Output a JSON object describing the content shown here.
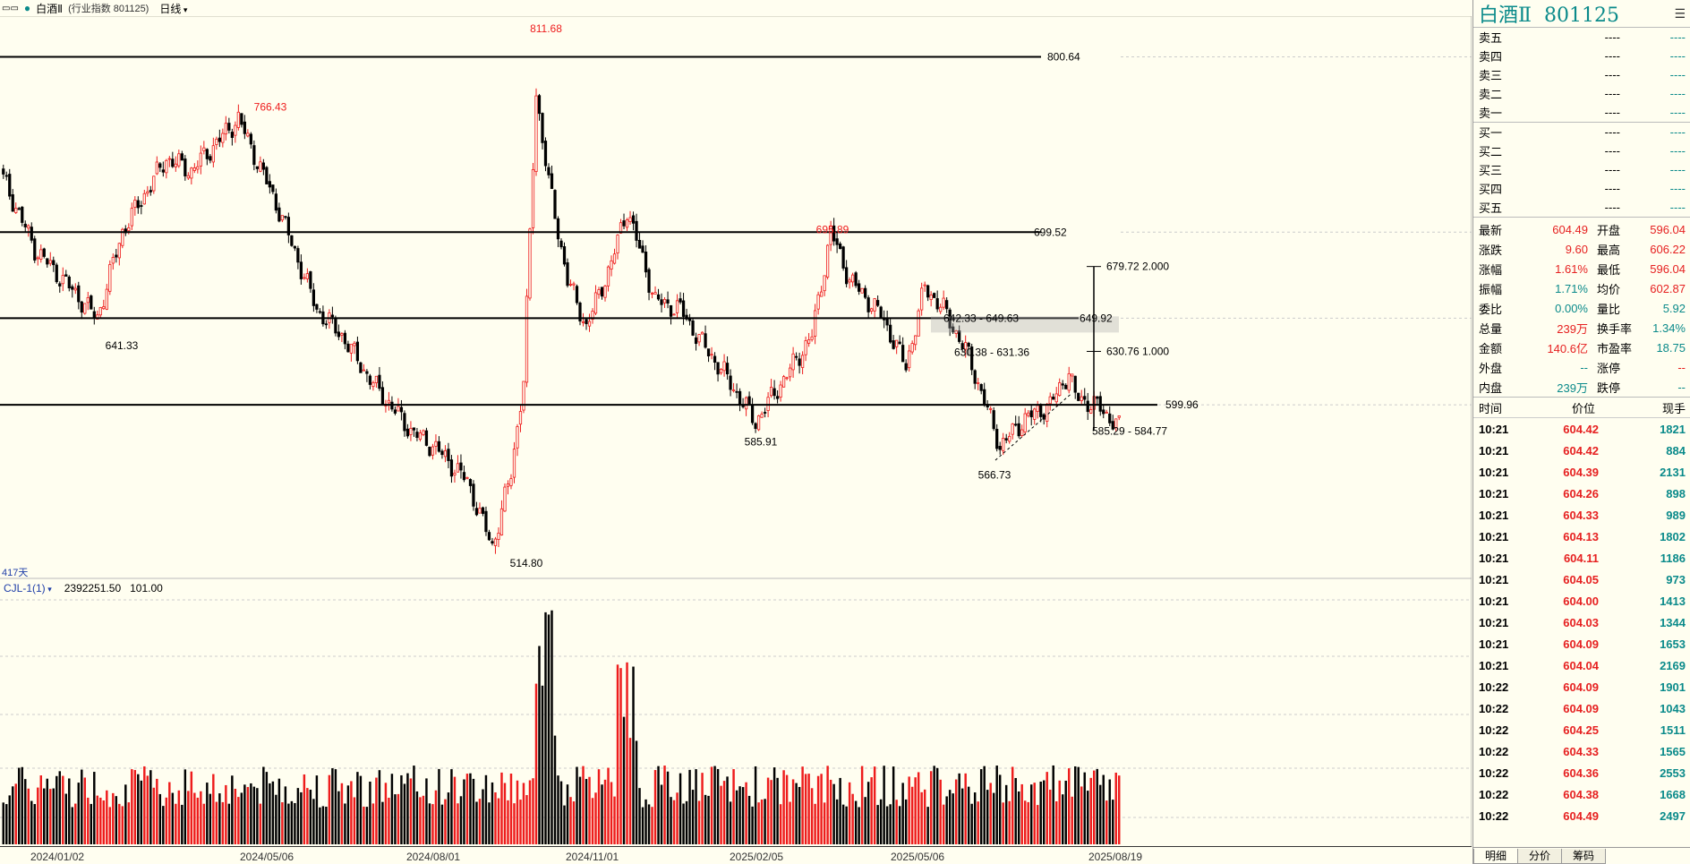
{
  "header": {
    "window_icons": "▭▭",
    "title": "白酒Ⅱ",
    "subtitle": "(行业指数  801125)",
    "period": "日线"
  },
  "chart": {
    "days_label": "417天",
    "indicator": {
      "name": "CJL-1(1)",
      "value1": "2392251.50",
      "value2": "101.00"
    },
    "dates": [
      "2024/01/02",
      "2024/05/06",
      "2024/08/01",
      "2024/11/01",
      "2025/02/05",
      "2025/05/06",
      "2025/08/19"
    ],
    "colors": {
      "up": "#ee1c1c",
      "down": "#000000",
      "background": "#fffef0"
    }
  },
  "chart_data": {
    "type": "candlestick",
    "price_range": [
      505,
      820
    ],
    "horizontal_levels": [
      {
        "label": "800.64",
        "value": 800.64
      },
      {
        "label": "699.52",
        "value": 699.52
      },
      {
        "label": "649.92",
        "value": 649.92
      },
      {
        "label": "599.96",
        "value": 599.96
      }
    ],
    "annotations": [
      {
        "label": "811.68",
        "value": 811.68
      },
      {
        "label": "766.43",
        "value": 766.43
      },
      {
        "label": "641.33",
        "value": 641.33
      },
      {
        "label": "514.80",
        "value": 514.8
      },
      {
        "label": "585.91",
        "value": 585.91
      },
      {
        "label": "695.89",
        "value": 695.89
      },
      {
        "label": "566.73",
        "value": 566.73
      },
      {
        "label": "642.33 - 649.63"
      },
      {
        "label": "630.38 - 631.36"
      },
      {
        "label": "585.29 - 584.77"
      }
    ],
    "measure": [
      {
        "label": "679.72",
        "ratio": "2.000"
      },
      {
        "label": "630.76",
        "ratio": "1.000"
      }
    ],
    "key_points": [
      [
        0,
        730
      ],
      [
        10,
        690
      ],
      [
        24,
        662
      ],
      [
        30,
        650
      ],
      [
        38,
        700
      ],
      [
        52,
        742
      ],
      [
        60,
        735
      ],
      [
        75,
        765
      ],
      [
        88,
        712
      ],
      [
        100,
        655
      ],
      [
        108,
        640
      ],
      [
        118,
        612
      ],
      [
        130,
        585
      ],
      [
        138,
        575
      ],
      [
        148,
        556
      ],
      [
        156,
        518
      ],
      [
        162,
        560
      ],
      [
        166,
        615
      ],
      [
        170,
        780
      ],
      [
        174,
        728
      ],
      [
        180,
        672
      ],
      [
        186,
        645
      ],
      [
        194,
        682
      ],
      [
        199,
        713
      ],
      [
        208,
        660
      ],
      [
        216,
        655
      ],
      [
        222,
        638
      ],
      [
        230,
        618
      ],
      [
        240,
        590
      ],
      [
        248,
        612
      ],
      [
        258,
        640
      ],
      [
        264,
        700
      ],
      [
        270,
        672
      ],
      [
        280,
        652
      ],
      [
        288,
        622
      ],
      [
        294,
        668
      ],
      [
        300,
        655
      ],
      [
        308,
        628
      ],
      [
        318,
        576
      ],
      [
        326,
        592
      ],
      [
        334,
        600
      ],
      [
        340,
        619
      ],
      [
        342,
        605
      ],
      [
        350,
        598
      ],
      [
        356,
        587
      ]
    ],
    "volume_range": [
      0,
      9
    ]
  },
  "panel": {
    "name": "白酒Ⅱ",
    "code": "801125",
    "menu_icon": "list-icon",
    "order_book": [
      {
        "label": "卖五",
        "price": "----",
        "vol": "----"
      },
      {
        "label": "卖四",
        "price": "----",
        "vol": "----"
      },
      {
        "label": "卖三",
        "price": "----",
        "vol": "----"
      },
      {
        "label": "卖二",
        "price": "----",
        "vol": "----"
      },
      {
        "label": "卖一",
        "price": "----",
        "vol": "----"
      },
      {
        "label": "买一",
        "price": "----",
        "vol": "----"
      },
      {
        "label": "买二",
        "price": "----",
        "vol": "----"
      },
      {
        "label": "买三",
        "price": "----",
        "vol": "----"
      },
      {
        "label": "买四",
        "price": "----",
        "vol": "----"
      },
      {
        "label": "买五",
        "price": "----",
        "vol": "----"
      }
    ],
    "quote": [
      {
        "l1": "最新",
        "v1": "604.49",
        "c1": "red",
        "l2": "开盘",
        "v2": "596.04",
        "c2": "red"
      },
      {
        "l1": "涨跌",
        "v1": "9.60",
        "c1": "red",
        "l2": "最高",
        "v2": "606.22",
        "c2": "red"
      },
      {
        "l1": "涨幅",
        "v1": "1.61%",
        "c1": "red",
        "l2": "最低",
        "v2": "596.04",
        "c2": "red"
      },
      {
        "l1": "振幅",
        "v1": "1.71%",
        "c1": "green",
        "l2": "均价",
        "v2": "602.87",
        "c2": "red"
      },
      {
        "l1": "委比",
        "v1": "0.00%",
        "c1": "green",
        "l2": "量比",
        "v2": "5.92",
        "c2": "green"
      },
      {
        "l1": "总量",
        "v1": "239万",
        "c1": "red",
        "l2": "换手率",
        "v2": "1.34%",
        "c2": "green"
      },
      {
        "l1": "金额",
        "v1": "140.6亿",
        "c1": "red",
        "l2": "市盈率",
        "v2": "18.75",
        "c2": "green"
      },
      {
        "l1": "外盘",
        "v1": "--",
        "c1": "green",
        "l2": "涨停",
        "v2": "--",
        "c2": "red"
      },
      {
        "l1": "内盘",
        "v1": "239万",
        "c1": "green",
        "l2": "跌停",
        "v2": "--",
        "c2": "green"
      }
    ],
    "tick_header": {
      "time": "时间",
      "price": "价位",
      "vol": "现手"
    },
    "ticks": [
      {
        "time": "10:21",
        "price": "604.42",
        "vol": "1821"
      },
      {
        "time": "10:21",
        "price": "604.42",
        "vol": "884"
      },
      {
        "time": "10:21",
        "price": "604.39",
        "vol": "2131"
      },
      {
        "time": "10:21",
        "price": "604.26",
        "vol": "898"
      },
      {
        "time": "10:21",
        "price": "604.33",
        "vol": "989"
      },
      {
        "time": "10:21",
        "price": "604.13",
        "vol": "1802"
      },
      {
        "time": "10:21",
        "price": "604.11",
        "vol": "1186"
      },
      {
        "time": "10:21",
        "price": "604.05",
        "vol": "973"
      },
      {
        "time": "10:21",
        "price": "604.00",
        "vol": "1413"
      },
      {
        "time": "10:21",
        "price": "604.03",
        "vol": "1344"
      },
      {
        "time": "10:21",
        "price": "604.09",
        "vol": "1653"
      },
      {
        "time": "10:21",
        "price": "604.04",
        "vol": "2169"
      },
      {
        "time": "10:22",
        "price": "604.09",
        "vol": "1901"
      },
      {
        "time": "10:22",
        "price": "604.09",
        "vol": "1043"
      },
      {
        "time": "10:22",
        "price": "604.25",
        "vol": "1511"
      },
      {
        "time": "10:22",
        "price": "604.33",
        "vol": "1565"
      },
      {
        "time": "10:22",
        "price": "604.36",
        "vol": "2553"
      },
      {
        "time": "10:22",
        "price": "604.38",
        "vol": "1668"
      },
      {
        "time": "10:22",
        "price": "604.49",
        "vol": "2497"
      }
    ],
    "tabs": [
      "明细",
      "分价",
      "筹码"
    ]
  }
}
